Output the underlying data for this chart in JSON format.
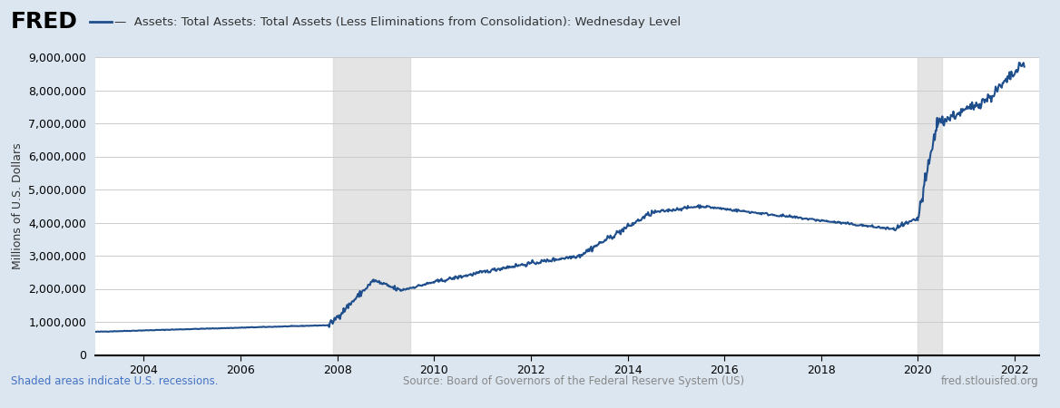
{
  "title": "Assets: Total Assets: Total Assets (Less Eliminations from Consolidation): Wednesday Level",
  "ylabel": "Millions of U.S. Dollars",
  "background_color": "#dce6f0",
  "plot_background": "#ffffff",
  "line_color": "#1f4e8c",
  "recession_color": "#d3d3d3",
  "recession_alpha": 0.6,
  "recessions": [
    [
      2007.917,
      2009.5
    ]
  ],
  "recession2": [
    2020.0,
    2020.5
  ],
  "ylim": [
    0,
    9000000
  ],
  "yticks": [
    0,
    1000000,
    2000000,
    3000000,
    4000000,
    5000000,
    6000000,
    7000000,
    8000000,
    9000000
  ],
  "xlim_start": 2003.0,
  "xlim_end": 2022.5,
  "footer_left": "Shaded areas indicate U.S. recessions.",
  "footer_center": "Source: Board of Governors of the Federal Reserve System (US)",
  "footer_right": "fred.stlouisfed.org",
  "fred_text": "FRED",
  "fred_color": "#1f1f1f",
  "footer_link_color": "#4472c4"
}
